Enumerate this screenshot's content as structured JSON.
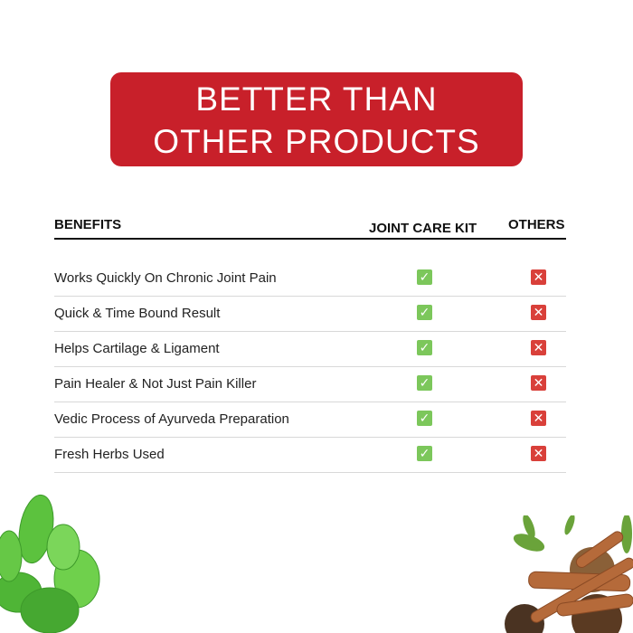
{
  "banner": {
    "line1": "BETTER THAN",
    "line2": "OTHER PRODUCTS",
    "color": "#c8202a"
  },
  "table": {
    "headers": {
      "benefits": "BENEFITS",
      "kit": "JOINT CARE KIT",
      "others": "OTHERS"
    },
    "rows": [
      {
        "benefit": "Works Quickly On Chronic Joint Pain",
        "kit": "check-icon",
        "others": "cross-icon"
      },
      {
        "benefit": "Quick & Time Bound Result",
        "kit": "check-icon",
        "others": "cross-icon"
      },
      {
        "benefit": "Helps Cartilage & Ligament",
        "kit": "check-icon",
        "others": "cross-icon"
      },
      {
        "benefit": "Pain Healer & Not Just Pain Killer",
        "kit": "check-icon",
        "others": "cross-icon"
      },
      {
        "benefit": "Vedic Process of Ayurveda Preparation",
        "kit": "check-icon",
        "others": "cross-icon"
      },
      {
        "benefit": "Fresh Herbs Used",
        "kit": "check-icon",
        "others": "cross-icon"
      }
    ],
    "check_color": "#7cc75b",
    "cross_color": "#d9403a"
  },
  "images": {
    "left": "mint-leaves",
    "right": "cinnamon-spices"
  }
}
